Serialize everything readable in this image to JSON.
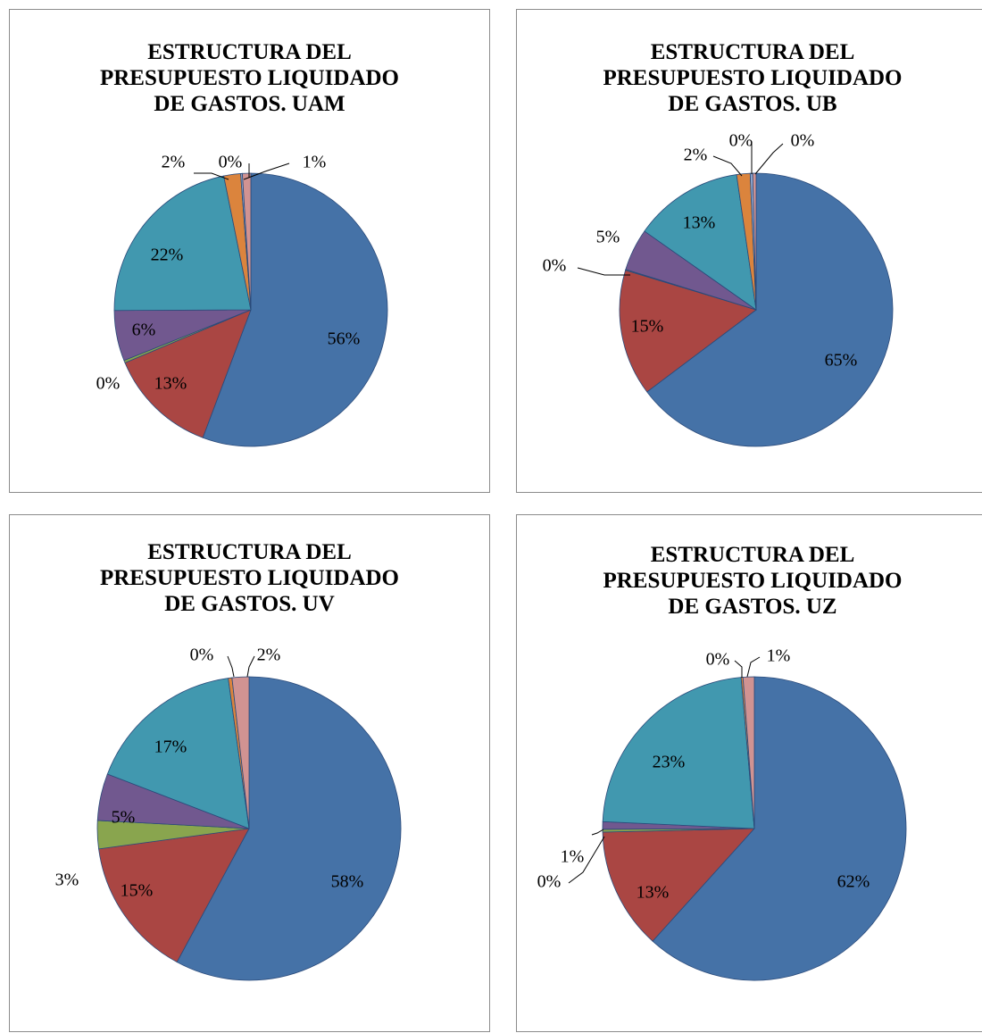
{
  "chart_data": [
    {
      "type": "pie",
      "title": "ESTRUCTURA DEL\nPRESUPUESTO LIQUIDADO\nDE GASTOS. UAM",
      "slices": [
        {
          "value": 56,
          "label": "56%",
          "color": "#4572A7"
        },
        {
          "value": 13,
          "label": "13%",
          "color": "#AA4643"
        },
        {
          "value": 0.3,
          "label": "0%",
          "color": "#89A54E"
        },
        {
          "value": 6,
          "label": "6%",
          "color": "#71588F"
        },
        {
          "value": 22,
          "label": "22%",
          "color": "#4198AF"
        },
        {
          "value": 2,
          "label": "2%",
          "color": "#DB843D"
        },
        {
          "value": 0.2,
          "label": "0%",
          "color": "#93A9CF"
        },
        {
          "value": 1,
          "label": "1%",
          "color": "#D19392"
        }
      ]
    },
    {
      "type": "pie",
      "title": "ESTRUCTURA DEL\nPRESUPUESTO LIQUIDADO\nDE GASTOS. UB",
      "slices": [
        {
          "value": 65,
          "label": "65%",
          "color": "#4572A7"
        },
        {
          "value": 15,
          "label": "15%",
          "color": "#AA4643"
        },
        {
          "value": 0.1,
          "label": "0%",
          "color": "#89A54E"
        },
        {
          "value": 5,
          "label": "5%",
          "color": "#71588F"
        },
        {
          "value": 13,
          "label": "13%",
          "color": "#4198AF"
        },
        {
          "value": 1.6,
          "label": "2%",
          "color": "#DB843D"
        },
        {
          "value": 0.3,
          "label": "0%",
          "color": "#93A9CF"
        },
        {
          "value": 0.4,
          "label": "0%",
          "color": "#D19392"
        }
      ]
    },
    {
      "type": "pie",
      "title": "ESTRUCTURA DEL\nPRESUPUESTO LIQUIDADO\nDE GASTOS. UV",
      "slices": [
        {
          "value": 58,
          "label": "58%",
          "color": "#4572A7"
        },
        {
          "value": 15,
          "label": "15%",
          "color": "#AA4643"
        },
        {
          "value": 3,
          "label": "3%",
          "color": "#89A54E"
        },
        {
          "value": 5,
          "label": "5%",
          "color": "#71588F"
        },
        {
          "value": 17,
          "label": "17%",
          "color": "#4198AF"
        },
        {
          "value": 0.4,
          "label": "0%",
          "color": "#DB843D"
        },
        {
          "value": 1.8,
          "label": "2%",
          "color": "#D19392"
        }
      ]
    },
    {
      "type": "pie",
      "title": "ESTRUCTURA DEL\nPRESUPUESTO LIQUIDADO\nDE GASTOS. UZ",
      "slices": [
        {
          "value": 62,
          "label": "62%",
          "color": "#4572A7"
        },
        {
          "value": 13,
          "label": "13%",
          "color": "#AA4643"
        },
        {
          "value": 0.3,
          "label": "0%",
          "color": "#89A54E"
        },
        {
          "value": 0.8,
          "label": "1%",
          "color": "#71588F"
        },
        {
          "value": 23,
          "label": "23%",
          "color": "#4198AF"
        },
        {
          "value": 0.2,
          "label": "0%",
          "color": "#DB843D"
        },
        {
          "value": 1.2,
          "label": "1%",
          "color": "#D19392"
        }
      ]
    }
  ]
}
